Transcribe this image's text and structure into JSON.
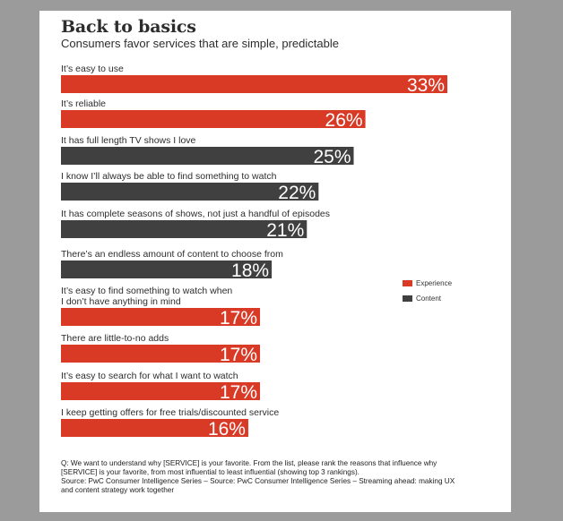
{
  "colors": {
    "experience": "#d93a26",
    "content": "#404040"
  },
  "legend": {
    "experience": "Experience",
    "content": "Content"
  },
  "chart_data": {
    "type": "bar",
    "orientation": "horizontal",
    "title": "Back to basics",
    "subtitle": "Consumers favor services that are simple, predictable",
    "xlim": [
      0,
      33
    ],
    "items": [
      {
        "label": [
          "It’s easy to use"
        ],
        "value": 33,
        "value_label": "33%",
        "group": "experience"
      },
      {
        "label": [
          "It’s reliable"
        ],
        "value": 26,
        "value_label": "26%",
        "group": "experience"
      },
      {
        "label": [
          "It has full length TV shows I love"
        ],
        "value": 25,
        "value_label": "25%",
        "group": "content"
      },
      {
        "label": [
          "I know I’ll always be able to find something to watch"
        ],
        "value": 22,
        "value_label": "22%",
        "group": "content"
      },
      {
        "label": [
          "It has complete seasons of shows, not just a handful of episodes"
        ],
        "value": 21,
        "value_label": "21%",
        "group": "content"
      },
      {
        "label": [
          "There’s an endless amount of content to choose from"
        ],
        "value": 18,
        "value_label": "18%",
        "group": "content"
      },
      {
        "label": [
          "It’s easy to find something to watch when",
          "I don’t have anything in mind"
        ],
        "value": 17,
        "value_label": "17%",
        "group": "experience"
      },
      {
        "label": [
          "There are little-to-no adds"
        ],
        "value": 17,
        "value_label": "17%",
        "group": "experience"
      },
      {
        "label": [
          "It’s easy to search for what I want to watch"
        ],
        "value": 17,
        "value_label": "17%",
        "group": "experience"
      },
      {
        "label": [
          "I keep getting offers for free trials/discounted service"
        ],
        "value": 16,
        "value_label": "16%",
        "group": "experience"
      }
    ]
  },
  "footnote": {
    "line1": "Q: We want to understand why [SERVICE] is your favorite. From the list, please rank the reasons that influence why [SERVICE] is your favorite, from most influential to least influential (showing top 3 rankings).",
    "line2": "Source: PwC Consumer Intelligence Series – Source: PwC Consumer Intelligence Series – Streaming ahead: making UX and content strategy work together"
  }
}
